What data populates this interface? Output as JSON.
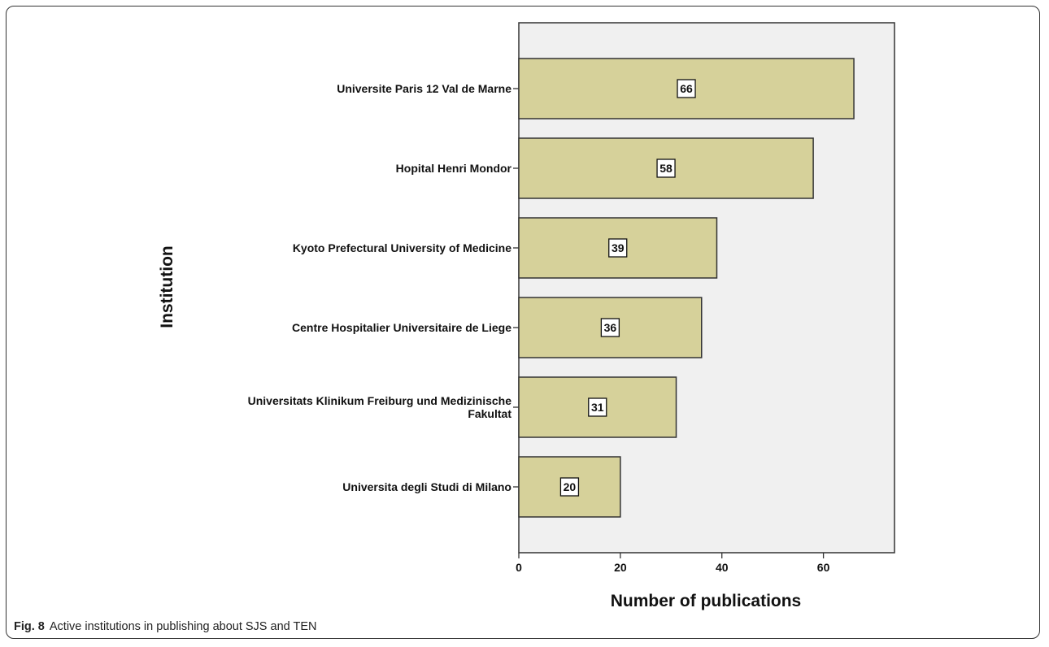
{
  "caption": {
    "label": "Fig. 8",
    "text": "Active institutions in publishing about SJS and TEN"
  },
  "colors": {
    "bar_fill": "#d6d19a",
    "bar_stroke": "#333333",
    "plot_bg": "#f0f0f0"
  },
  "chart_data": {
    "type": "bar",
    "orientation": "horizontal",
    "xlabel": "Number of publications",
    "ylabel": "Institution",
    "xlim": [
      0,
      74
    ],
    "xticks": [
      0,
      20,
      40,
      60
    ],
    "grid": false,
    "categories": [
      [
        "Universite Paris 12 Val de Marne"
      ],
      [
        "Hopital Henri Mondor"
      ],
      [
        "Kyoto Prefectural University of Medicine"
      ],
      [
        "Centre Hospitalier Universitaire de Liege"
      ],
      [
        "Universitats Klinikum Freiburg und Medizinische",
        "Fakultat"
      ],
      [
        "Universita degli Studi di Milano"
      ]
    ],
    "values": [
      66,
      58,
      39,
      36,
      31,
      20
    ]
  }
}
